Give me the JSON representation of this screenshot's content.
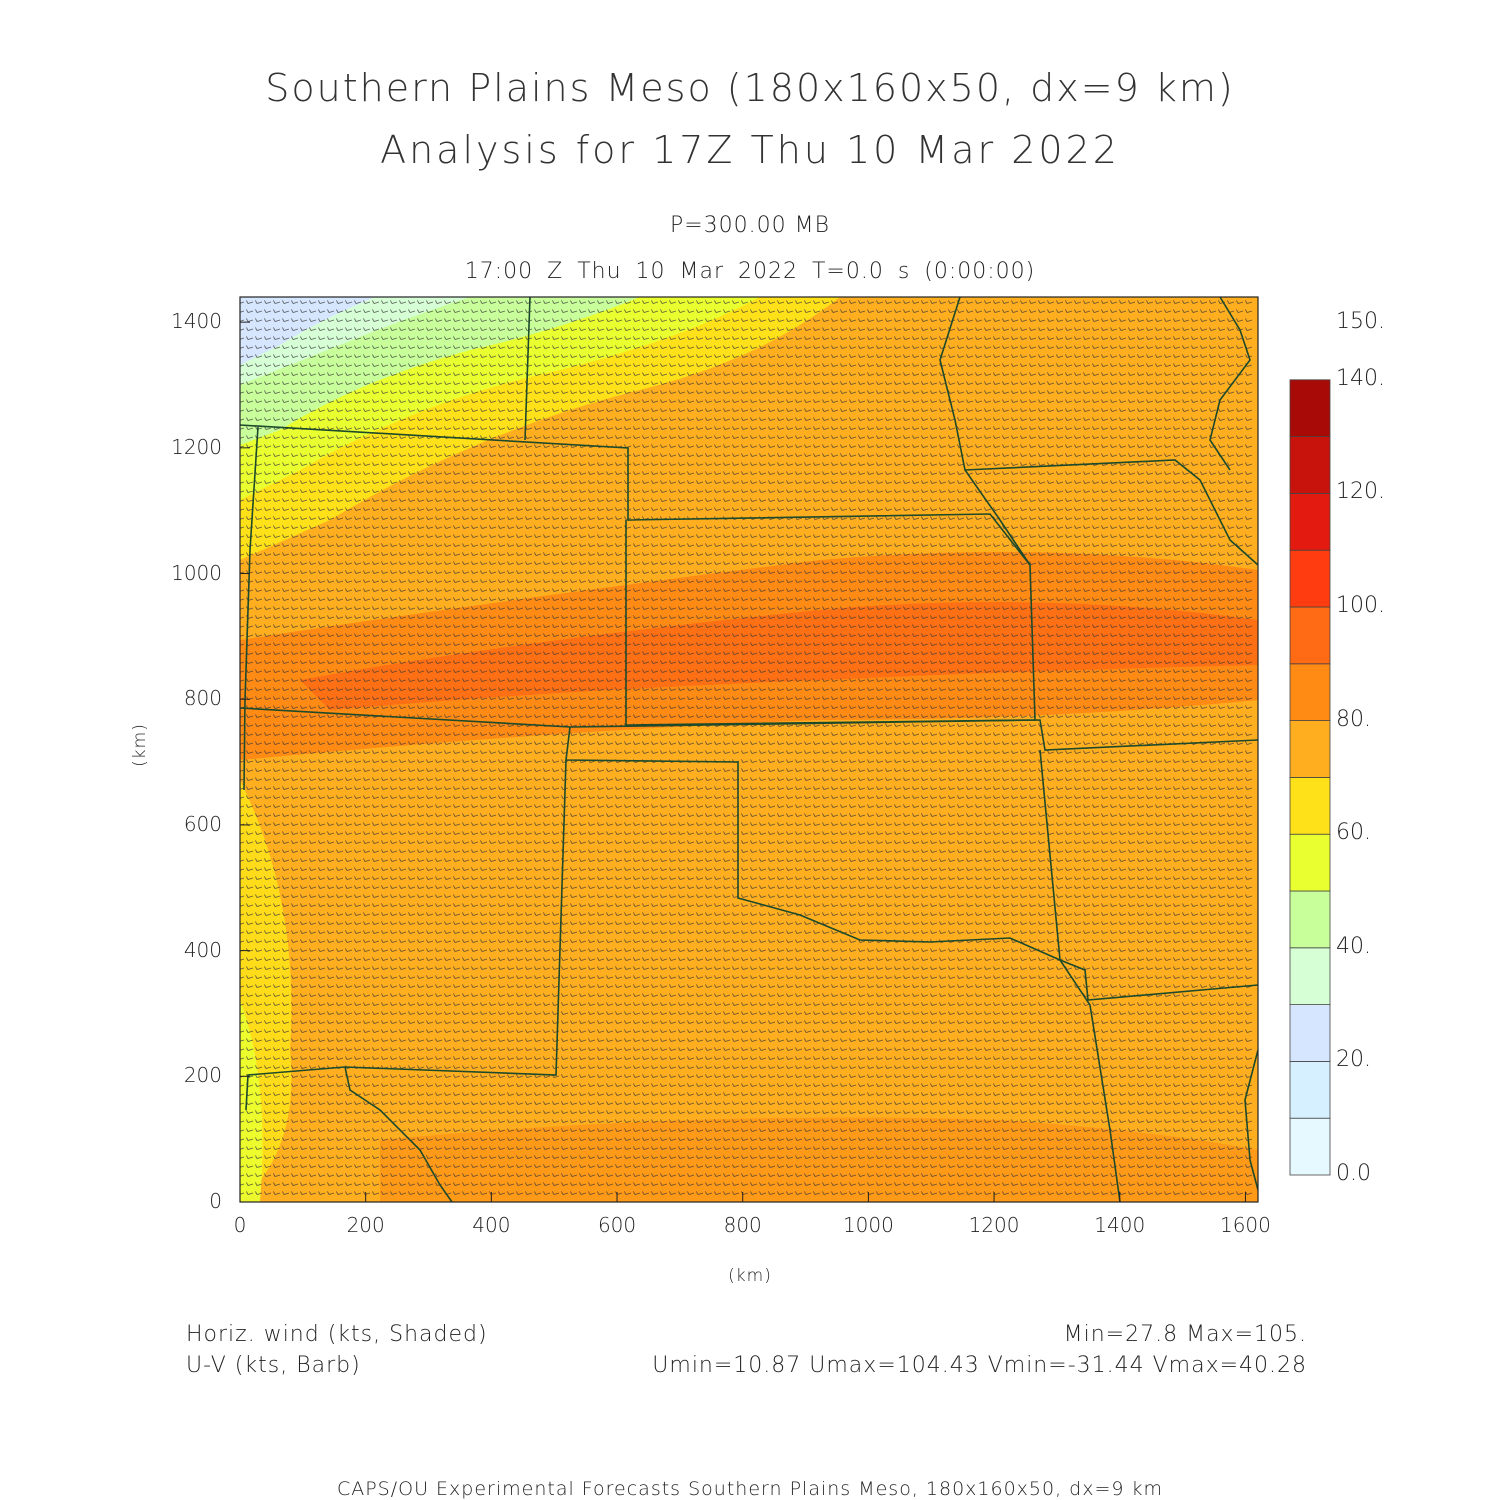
{
  "title": {
    "line1": "Southern Plains Meso (180x160x50, dx=9 km)",
    "line2": "Analysis for 17Z Thu 10 Mar 2022"
  },
  "subtitle": {
    "level": "P=300.00 MB",
    "time": "17:00 Z Thu 10 Mar 2022   T=0.0 s (0:00:00)"
  },
  "axes": {
    "x_label": "(km)",
    "y_label": "(km)",
    "x_range": [
      0,
      1620
    ],
    "y_range": [
      0,
      1440
    ],
    "x_ticks": [
      "0",
      "200",
      "400",
      "600",
      "800",
      "1000",
      "1200",
      "1400",
      "1600"
    ],
    "y_ticks": [
      "0",
      "200",
      "400",
      "600",
      "800",
      "1000",
      "1200",
      "1400"
    ]
  },
  "colorbar": {
    "min": 0,
    "max": 150,
    "labels": [
      "0.0",
      "20.",
      "40.",
      "60.",
      "80.",
      "100.",
      "120.",
      "140.",
      "150."
    ],
    "colors": [
      "#e6f9ff",
      "#d6f0ff",
      "#d6e6ff",
      "#d6ffd6",
      "#c8ff9a",
      "#eaff30",
      "#ffe11a",
      "#ffae1f",
      "#ff8a14",
      "#ff6a14",
      "#ff3c10",
      "#e31a0f",
      "#c8120c",
      "#a80a08"
    ]
  },
  "legend": {
    "shaded": "Horiz. wind (kts, Shaded)",
    "barb": "U-V (kts, Barb)"
  },
  "stats": {
    "range": "Min=27.8 Max=105.",
    "components": "Umin=10.87 Umax=104.43 Vmin=-31.44 Vmax=40.28"
  },
  "footer": "CAPS/OU Experimental Forecasts  Southern Plains Meso, 180x160x50, dx=9 km"
}
